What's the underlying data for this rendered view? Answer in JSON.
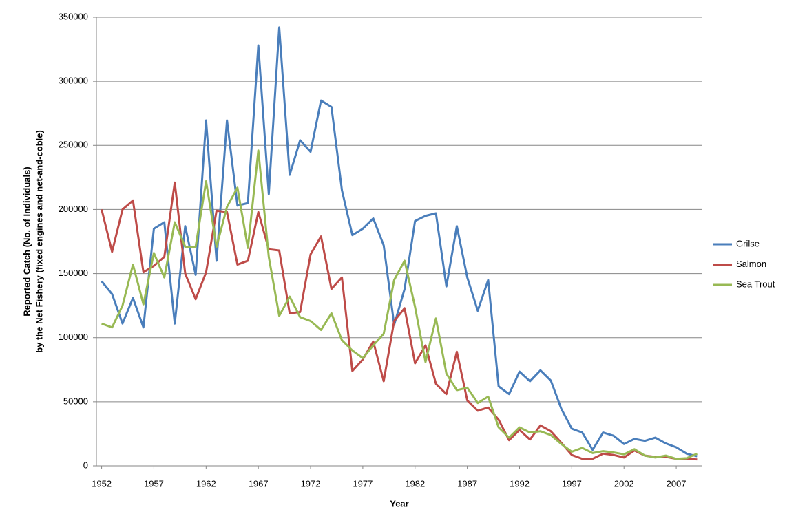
{
  "chart_data": {
    "type": "line",
    "x_label": "Year",
    "y_label": [
      "Reported Catch (No. of Individuals)",
      "by the Net Fishery (fixed engines and net-and-coble)"
    ],
    "x": [
      1952,
      1953,
      1954,
      1955,
      1956,
      1957,
      1958,
      1959,
      1960,
      1961,
      1962,
      1963,
      1964,
      1965,
      1966,
      1967,
      1968,
      1969,
      1970,
      1971,
      1972,
      1973,
      1974,
      1975,
      1976,
      1977,
      1978,
      1979,
      1980,
      1981,
      1982,
      1983,
      1984,
      1985,
      1986,
      1987,
      1988,
      1989,
      1990,
      1991,
      1992,
      1993,
      1994,
      1995,
      1996,
      1997,
      1998,
      1999,
      2000,
      2001,
      2002,
      2003,
      2004,
      2005,
      2006,
      2007,
      2008,
      2009
    ],
    "xlim": [
      1951.5,
      2009.5
    ],
    "xticks": [
      1952,
      1957,
      1962,
      1967,
      1972,
      1977,
      1982,
      1987,
      1992,
      1997,
      2002,
      2007
    ],
    "ylim": [
      0,
      350000
    ],
    "yticks": [
      0,
      50000,
      100000,
      150000,
      200000,
      250000,
      300000,
      350000
    ],
    "grid": true,
    "legend": "right",
    "series": [
      {
        "name": "Grilse",
        "color": "#4a7ebb",
        "values": [
          144000,
          134000,
          111000,
          131000,
          108000,
          185000,
          190000,
          111000,
          187000,
          149000,
          269500,
          160000,
          269500,
          203000,
          205000,
          328000,
          212000,
          342000,
          227000,
          254000,
          245000,
          285000,
          280000,
          215000,
          180000,
          185000,
          193000,
          172000,
          110000,
          138000,
          191000,
          195000,
          197000,
          140000,
          187000,
          147000,
          121000,
          145000,
          62000,
          56000,
          73500,
          66000,
          74500,
          66500,
          44500,
          29000,
          26000,
          12500,
          26000,
          23500,
          17000,
          21000,
          19500,
          22000,
          17500,
          14500,
          9500,
          7500
        ]
      },
      {
        "name": "Salmon",
        "color": "#be4b48",
        "values": [
          200000,
          167000,
          200000,
          207000,
          151000,
          156000,
          163000,
          221000,
          150000,
          130000,
          151000,
          199000,
          198000,
          157000,
          160000,
          198000,
          169000,
          168000,
          119000,
          120000,
          165000,
          179000,
          138000,
          147000,
          74000,
          83000,
          97000,
          66000,
          113000,
          123000,
          80000,
          94000,
          64000,
          56000,
          89000,
          51000,
          43000,
          45500,
          36000,
          20000,
          28000,
          20500,
          31500,
          27000,
          18000,
          8500,
          5500,
          5500,
          9500,
          8500,
          6500,
          12000,
          8000,
          7000,
          7000,
          5500,
          5500,
          5000
        ]
      },
      {
        "name": "Sea Trout",
        "color": "#98b954",
        "values": [
          111000,
          108000,
          125000,
          157000,
          126000,
          166000,
          147000,
          190000,
          171000,
          171000,
          222000,
          171000,
          202000,
          217000,
          170000,
          246000,
          163000,
          117000,
          132000,
          116000,
          113000,
          106000,
          119000,
          98000,
          90000,
          84000,
          94000,
          103000,
          145000,
          160000,
          124000,
          81000,
          115000,
          72000,
          59000,
          61000,
          49000,
          54000,
          30000,
          22000,
          30000,
          26000,
          27000,
          24000,
          17000,
          11000,
          14000,
          10000,
          11500,
          10500,
          9000,
          13000,
          8000,
          6500,
          8000,
          5500,
          6000,
          9500
        ]
      }
    ]
  }
}
